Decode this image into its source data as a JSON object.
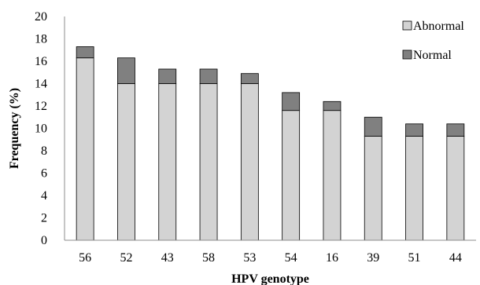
{
  "chart_data": {
    "type": "bar",
    "stacked": true,
    "xlabel": "HPV genotype",
    "ylabel": "Frequency (%)",
    "ylim": [
      0,
      20
    ],
    "yticks": [
      0,
      2,
      4,
      6,
      8,
      10,
      12,
      14,
      16,
      18,
      20
    ],
    "grid": false,
    "legend_position": "top-right",
    "categories": [
      "56",
      "52",
      "43",
      "58",
      "53",
      "54",
      "16",
      "39",
      "51",
      "44"
    ],
    "series": [
      {
        "name": "Abnormal",
        "color": "#d3d3d3",
        "values": [
          16.3,
          14.0,
          14.0,
          14.0,
          14.0,
          11.6,
          11.6,
          9.3,
          9.3,
          9.3
        ]
      },
      {
        "name": "Normal",
        "color": "#808080",
        "values": [
          1.0,
          2.3,
          1.3,
          1.3,
          0.9,
          1.6,
          0.8,
          1.7,
          1.1,
          1.1
        ]
      }
    ]
  }
}
